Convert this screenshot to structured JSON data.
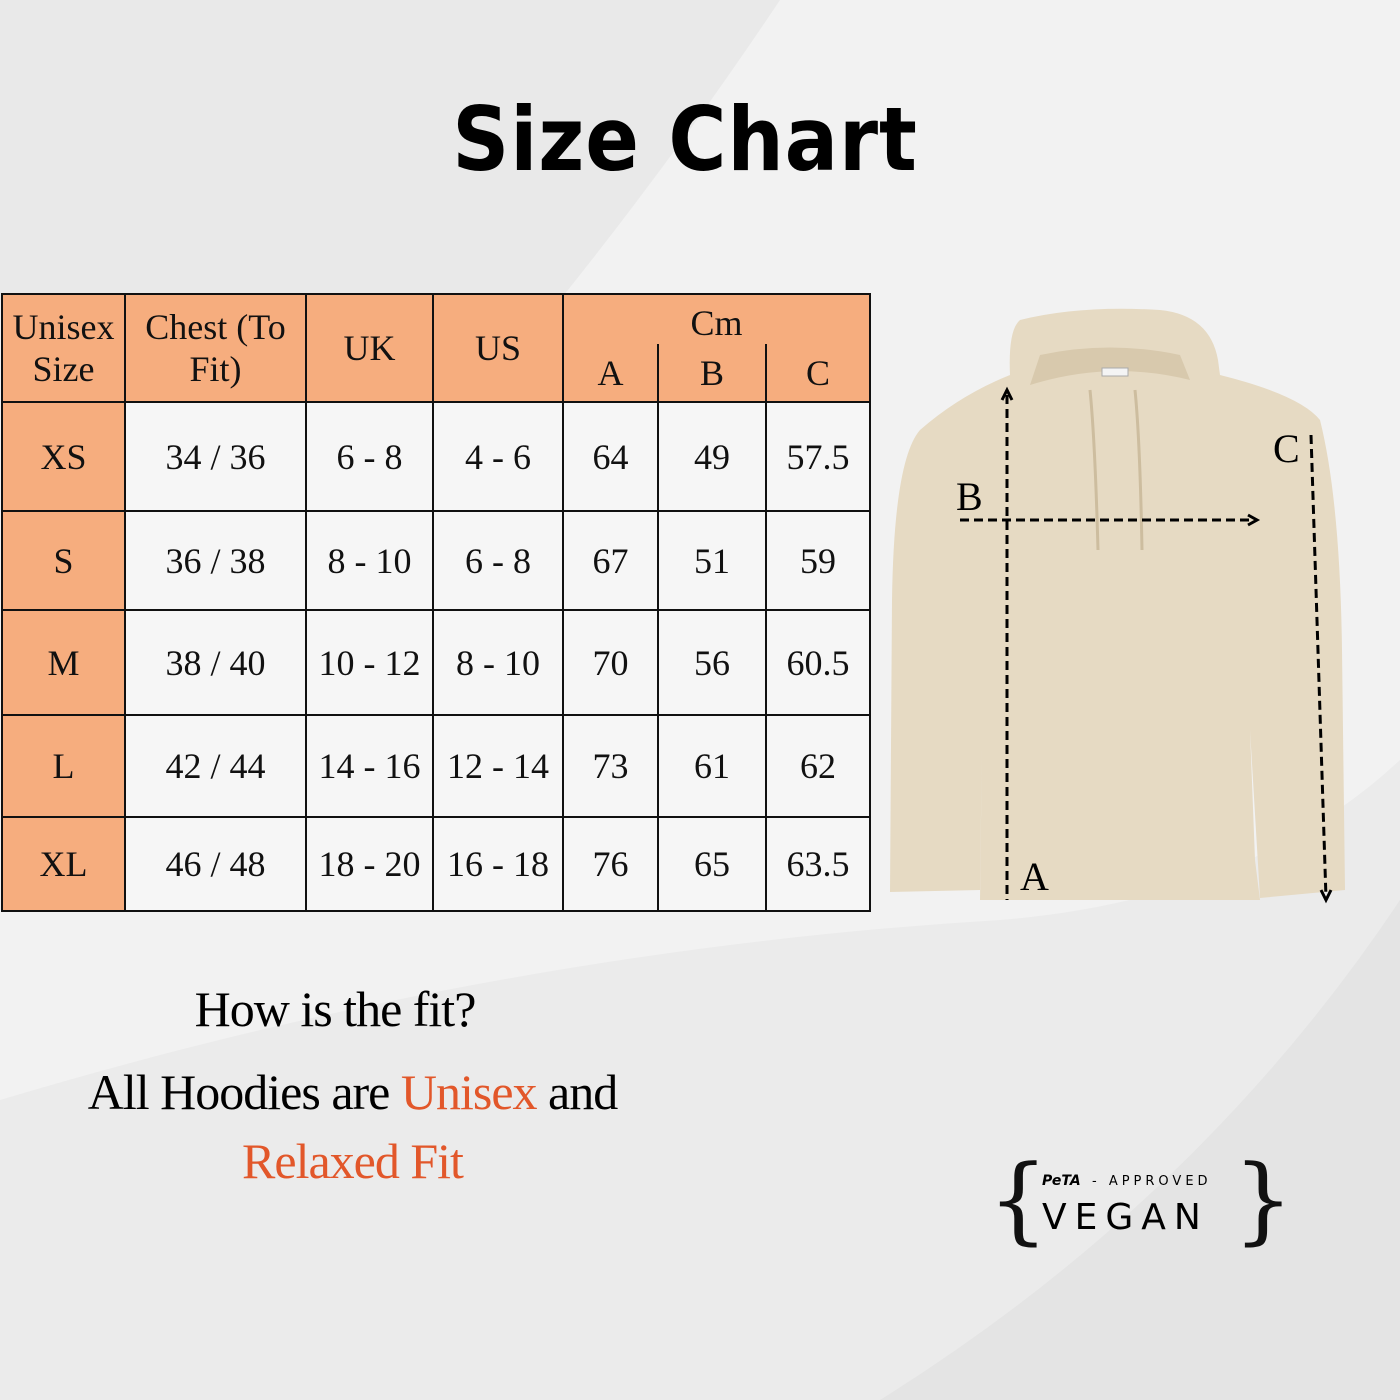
{
  "title": "Size Chart",
  "table": {
    "headers": {
      "size": "Unisex Size",
      "chest": "Chest (To Fit)",
      "uk": "UK",
      "us": "US",
      "cm": "Cm",
      "a": "A",
      "b": "B",
      "c": "C"
    },
    "rows": [
      {
        "size": "XS",
        "chest": "34 / 36",
        "uk": "6 - 8",
        "us": "4 - 6",
        "a": "64",
        "b": "49",
        "c": "57.5"
      },
      {
        "size": "S",
        "chest": "36 / 38",
        "uk": "8 - 10",
        "us": "6 - 8",
        "a": "67",
        "b": "51",
        "c": "59"
      },
      {
        "size": "M",
        "chest": "38 / 40",
        "uk": "10 - 12",
        "us": "8 - 10",
        "a": "70",
        "b": "56",
        "c": "60.5"
      },
      {
        "size": "L",
        "chest": "42 / 44",
        "uk": "14 - 16",
        "us": "12 - 14",
        "a": "73",
        "b": "61",
        "c": "62"
      },
      {
        "size": "XL",
        "chest": "46 / 48",
        "uk": "18 - 20",
        "us": "16 - 18",
        "a": "76",
        "b": "65",
        "c": "63.5"
      }
    ]
  },
  "diagram": {
    "label_a": "A",
    "label_b": "B",
    "label_c": "C"
  },
  "fit": {
    "question": "How is the fit?",
    "line_pre": "All Hoodies are ",
    "unisex": "Unisex",
    "line_post": " and",
    "relaxed": "Relaxed Fit"
  },
  "logo": {
    "brand": "PeTA",
    "approved": "- APPROVED",
    "vegan": "VEGAN"
  },
  "colors": {
    "header": "#f6ad7e",
    "accent": "#e2572a",
    "hoodie": "#e6dac3"
  }
}
